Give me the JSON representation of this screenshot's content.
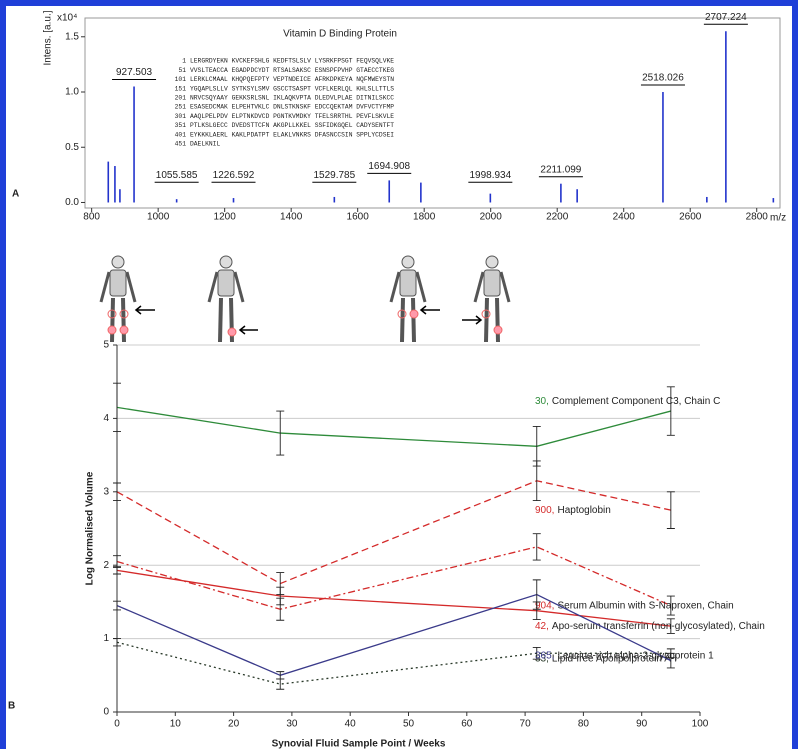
{
  "chart_data": [
    {
      "type": "spectrum",
      "panel": "A",
      "title": "Vitamin D Binding Protein",
      "ylabel": "Intens. [a.u.]",
      "y_multiplier": "x10⁴",
      "xlabel": "m/z",
      "color": "#2233cc",
      "x": [
        850,
        870,
        885,
        927.503,
        1055.585,
        1226.592,
        1529.785,
        1694.908,
        1790,
        1998.934,
        2211.099,
        2260,
        2518.026,
        2650,
        2707.224,
        2850
      ],
      "values": [
        0.37,
        0.33,
        0.12,
        1.05,
        0.03,
        0.04,
        0.05,
        0.2,
        0.18,
        0.08,
        0.17,
        0.12,
        1.0,
        0.05,
        1.55,
        0.04
      ],
      "peak_labels": [
        927.503,
        1055.585,
        1226.592,
        1529.785,
        1694.908,
        1998.934,
        2211.099,
        2518.026,
        2707.224
      ],
      "sequence_starts": [
        1,
        51,
        101,
        151,
        201,
        251,
        301,
        351,
        401,
        451
      ],
      "sequence_lines": [
        "LERGRDYEKN KVCKEFSHLG KEDFTSLSLV LYSRKFPSGT FEQVSQLVKE",
        "VVSLTEACCA EGADPDCYDT RTSALSAKSC ESNSPFPVHP GTAECCTKEG",
        "LERKLCMAAL KHQPQEFPTY VEPTNDEICE AFRKDPKEYA NQFMWEYSTN",
        "YGQAPLSLLV SYTKSYLSMV GSCCTSASPT VCFLKERLQL KHLSLLTTLS",
        "NRVCSQYAAY GEKKSRLSNL IKLAQKVPTA DLEDVLPLAE DITNILSKCC",
        "ESASEDCMAK ELPEHTVKLC DNLSTKNSKF EDCCQEKTAM DVFVCTYFMP",
        "AAQLPELPDV ELPTNKDVCD PGNTKVMDKY TFELSRRTHL PEVFLSKVLE",
        "PTLKSLGECC DVEDSTTCFN AKGPLLKKEL SSFIDKGQEL CADYSENTFT",
        "EYKKKLAERL KAKLPDATPT ELAKLVNKRS DFASNCCSIN SPPLYCDSEI",
        "DAELKNIL"
      ],
      "xlim": [
        780,
        2870
      ],
      "ylim": [
        -0.05,
        1.67
      ],
      "xticks": [
        800,
        1000,
        1200,
        1400,
        1600,
        1800,
        2000,
        2200,
        2400,
        2600,
        2800
      ],
      "yticks": [
        {
          "value": 0,
          "label": "0.0"
        },
        0.5,
        {
          "value": 1,
          "label": "1.0"
        },
        1.5
      ]
    },
    {
      "type": "line",
      "panel": "B",
      "xlabel": "Synovial Fluid Sample Point / Weeks",
      "ylabel": "Log Normalised Volume",
      "x": [
        0,
        28,
        72,
        95
      ],
      "xlim": [
        0,
        100
      ],
      "ylim": [
        0,
        5
      ],
      "xticks": [
        0,
        10,
        20,
        30,
        40,
        50,
        60,
        70,
        80,
        90,
        100
      ],
      "yticks": [
        0,
        1,
        2,
        3,
        4,
        5
      ],
      "grid": true,
      "series": [
        {
          "code": "30,",
          "name": "Complement Component C3, Chain C",
          "color": "#2e8b3a",
          "dash": "solid",
          "values": [
            4.15,
            3.8,
            3.62,
            4.1
          ],
          "errors": [
            0.33,
            0.3,
            0.27,
            0.33
          ]
        },
        {
          "code": "900,",
          "name": "Haptoglobin",
          "color": "#d42a2a",
          "dash": "dashed",
          "values": [
            3.0,
            1.75,
            3.15,
            2.75
          ],
          "errors": [
            0.12,
            0.15,
            0.27,
            0.25
          ]
        },
        {
          "code": "904,",
          "name": "Serum Albumin with S-Naproxen, Chain",
          "color": "#d42a2a",
          "dash": "dashdot",
          "values": [
            2.05,
            1.4,
            2.25,
            1.45
          ],
          "errors": [
            0.08,
            0.15,
            0.18,
            0.13
          ]
        },
        {
          "code": "42,",
          "name": "Apo-serum transferrin (non-glycosylated), Chain",
          "color": "#d42a2a",
          "dash": "solid",
          "values": [
            1.93,
            1.58,
            1.38,
            1.17
          ],
          "errors": [
            0.05,
            0.12,
            0.12,
            0.1
          ]
        },
        {
          "code": "33,",
          "name": "Lipid-free Apolipolprotein A-I",
          "color": "#2a3a2a",
          "dash": "dotted",
          "values": [
            0.95,
            0.38,
            0.8,
            0.8
          ],
          "errors": [
            0.05,
            0.07,
            0.08,
            0.06
          ]
        },
        {
          "code": "365,",
          "name": "Leucine-rich alpha-2-glycoprotein 1",
          "color": "#3a3a8a",
          "dash": "solid",
          "values": [
            1.45,
            0.5,
            1.6,
            0.7
          ],
          "errors": [
            0.06,
            0.05,
            0.2,
            0.1
          ]
        }
      ]
    }
  ]
}
